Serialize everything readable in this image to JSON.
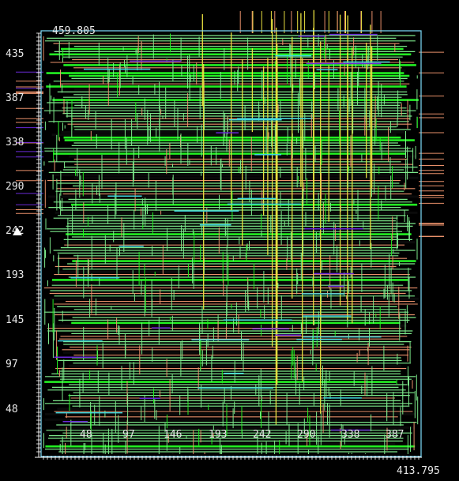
{
  "viewer": {
    "coord_top": "459.805",
    "coord_bottom": "413.795"
  },
  "y_axis_ticks": [
    "435",
    "387",
    "338",
    "290",
    "242",
    "193",
    "145",
    "97",
    "48"
  ],
  "x_axis_ticks": [
    "48",
    "97",
    "146",
    "193",
    "242",
    "290",
    "338",
    "387"
  ],
  "colors": {
    "background": "#000000",
    "frame": "#7fe0ff",
    "net_light_green": "#7ce88a",
    "net_bright_green": "#22ee22",
    "net_salmon": "#e8906a",
    "net_yellow": "#e8e040",
    "net_cyan": "#40d8e0",
    "net_violet": "#6a2ad8",
    "text": "#e8e8e8"
  },
  "icons": {
    "origin_marker": "up-triangle-icon"
  }
}
